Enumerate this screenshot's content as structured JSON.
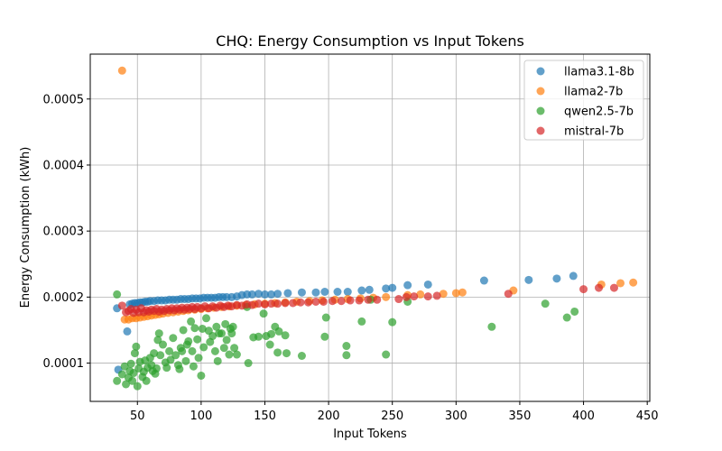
{
  "chart_data": {
    "type": "scatter",
    "title": "CHQ: Energy Consumption vs Input Tokens",
    "xlabel": "Input Tokens",
    "ylabel": "Energy Consumption (kWh)",
    "xlim": [
      13,
      452
    ],
    "ylim": [
      4.2e-05,
      0.000568
    ],
    "xticks": [
      50,
      100,
      150,
      200,
      250,
      300,
      350,
      400,
      450
    ],
    "yticks": [
      0.0001,
      0.0002,
      0.0003,
      0.0004,
      0.0005
    ],
    "ytick_labels": [
      "0.0001",
      "0.0002",
      "0.0003",
      "0.0004",
      "0.0005"
    ],
    "grid": true,
    "legend_position": "top-right",
    "series": [
      {
        "name": "llama3.1-8b",
        "color": "#1f77b4",
        "points": [
          [
            34,
            0.000183
          ],
          [
            35,
            9e-05
          ],
          [
            42,
            0.000148
          ],
          [
            44,
            0.000189
          ],
          [
            46,
            0.00019
          ],
          [
            48,
            0.000191
          ],
          [
            50,
            0.000191
          ],
          [
            52,
            0.000192
          ],
          [
            54,
            0.000192
          ],
          [
            56,
            0.000193
          ],
          [
            58,
            0.000193
          ],
          [
            60,
            0.000194
          ],
          [
            63,
            0.000194
          ],
          [
            66,
            0.000195
          ],
          [
            69,
            0.000195
          ],
          [
            72,
            0.000195
          ],
          [
            75,
            0.000196
          ],
          [
            78,
            0.000196
          ],
          [
            81,
            0.000196
          ],
          [
            84,
            0.000197
          ],
          [
            87,
            0.000197
          ],
          [
            90,
            0.000197
          ],
          [
            93,
            0.000198
          ],
          [
            96,
            0.000198
          ],
          [
            99,
            0.000198
          ],
          [
            102,
            0.000199
          ],
          [
            105,
            0.000199
          ],
          [
            108,
            0.000199
          ],
          [
            111,
            0.000199
          ],
          [
            114,
            0.0002
          ],
          [
            117,
            0.0002
          ],
          [
            120,
            0.0002
          ],
          [
            124,
            0.0002
          ],
          [
            128,
            0.000201
          ],
          [
            132,
            0.000203
          ],
          [
            136,
            0.000204
          ],
          [
            140,
            0.000204
          ],
          [
            145,
            0.000205
          ],
          [
            150,
            0.000204
          ],
          [
            155,
            0.000204
          ],
          [
            160,
            0.000205
          ],
          [
            168,
            0.000206
          ],
          [
            179,
            0.000207
          ],
          [
            190,
            0.000207
          ],
          [
            197,
            0.000208
          ],
          [
            207,
            0.000208
          ],
          [
            215,
            0.000208
          ],
          [
            226,
            0.00021
          ],
          [
            232,
            0.000211
          ],
          [
            245,
            0.000213
          ],
          [
            250,
            0.000214
          ],
          [
            262,
            0.000218
          ],
          [
            278,
            0.000219
          ],
          [
            322,
            0.000225
          ],
          [
            357,
            0.000226
          ],
          [
            379,
            0.000228
          ],
          [
            392,
            0.000232
          ]
        ]
      },
      {
        "name": "llama2-7b",
        "color": "#ff7f0e",
        "points": [
          [
            38,
            0.000543
          ],
          [
            40,
            0.000166
          ],
          [
            43,
            0.000166
          ],
          [
            46,
            0.000168
          ],
          [
            49,
            0.000168
          ],
          [
            52,
            0.000169
          ],
          [
            55,
            0.00017
          ],
          [
            58,
            0.000171
          ],
          [
            61,
            0.000172
          ],
          [
            64,
            0.000173
          ],
          [
            67,
            0.000174
          ],
          [
            70,
            0.000175
          ],
          [
            74,
            0.000176
          ],
          [
            78,
            0.000177
          ],
          [
            82,
            0.000178
          ],
          [
            86,
            0.000179
          ],
          [
            90,
            0.00018
          ],
          [
            95,
            0.000181
          ],
          [
            100,
            0.000182
          ],
          [
            105,
            0.000183
          ],
          [
            110,
            0.000184
          ],
          [
            116,
            0.000185
          ],
          [
            122,
            0.000186
          ],
          [
            128,
            0.000187
          ],
          [
            135,
            0.000188
          ],
          [
            142,
            0.000189
          ],
          [
            150,
            0.00019
          ],
          [
            158,
            0.000191
          ],
          [
            166,
            0.000192
          ],
          [
            175,
            0.000193
          ],
          [
            185,
            0.000194
          ],
          [
            195,
            0.000195
          ],
          [
            205,
            0.000196
          ],
          [
            215,
            0.000197
          ],
          [
            225,
            0.000198
          ],
          [
            235,
            0.000199
          ],
          [
            245,
            0.0002
          ],
          [
            262,
            0.000203
          ],
          [
            272,
            0.000204
          ],
          [
            290,
            0.000205
          ],
          [
            300,
            0.000206
          ],
          [
            305,
            0.000207
          ],
          [
            345,
            0.00021
          ],
          [
            414,
            0.000219
          ],
          [
            429,
            0.000221
          ],
          [
            439,
            0.000222
          ]
        ]
      },
      {
        "name": "qwen2.5-7b",
        "color": "#2ca02c",
        "points": [
          [
            34,
            0.000204
          ],
          [
            34,
            7.3e-05
          ],
          [
            38,
            8.3e-05
          ],
          [
            40,
            9.5e-05
          ],
          [
            41,
            6.8e-05
          ],
          [
            43,
            7.8e-05
          ],
          [
            44,
            8.8e-05
          ],
          [
            45,
            9.9e-05
          ],
          [
            46,
            7.3e-05
          ],
          [
            47,
            8.5e-05
          ],
          [
            48,
            0.000115
          ],
          [
            49,
            0.000125
          ],
          [
            50,
            6.5e-05
          ],
          [
            51,
            9.2e-05
          ],
          [
            52,
            0.000102
          ],
          [
            54,
            7.9e-05
          ],
          [
            55,
            8.7e-05
          ],
          [
            56,
            0.000104
          ],
          [
            57,
            7.3e-05
          ],
          [
            58,
            9.3e-05
          ],
          [
            60,
            0.000108
          ],
          [
            61,
            9.7e-05
          ],
          [
            62,
            8.8e-05
          ],
          [
            63,
            0.000115
          ],
          [
            64,
            8.4e-05
          ],
          [
            65,
            9.2e-05
          ],
          [
            66,
            0.000135
          ],
          [
            67,
            0.000145
          ],
          [
            68,
            0.000112
          ],
          [
            70,
            0.000128
          ],
          [
            72,
            0.000101
          ],
          [
            73,
            9.3e-05
          ],
          [
            75,
            0.000118
          ],
          [
            76,
            0.000105
          ],
          [
            78,
            0.000138
          ],
          [
            80,
            0.000112
          ],
          [
            82,
            9.7e-05
          ],
          [
            83,
            9.1e-05
          ],
          [
            84,
            0.000123
          ],
          [
            85,
            0.000118
          ],
          [
            86,
            0.00015
          ],
          [
            88,
            0.000103
          ],
          [
            89,
            0.000128
          ],
          [
            90,
            0.000133
          ],
          [
            92,
            0.000163
          ],
          [
            93,
            0.000118
          ],
          [
            94,
            9.5e-05
          ],
          [
            95,
            0.000153
          ],
          [
            97,
            0.000136
          ],
          [
            98,
            0.000108
          ],
          [
            100,
            8.1e-05
          ],
          [
            101,
            0.000152
          ],
          [
            102,
            0.000124
          ],
          [
            104,
            0.000168
          ],
          [
            106,
            0.000149
          ],
          [
            107,
            0.000132
          ],
          [
            109,
            0.000141
          ],
          [
            111,
            0.000118
          ],
          [
            112,
            0.000155
          ],
          [
            113,
            0.000103
          ],
          [
            114,
            0.000145
          ],
          [
            116,
            0.000145
          ],
          [
            118,
            0.000123
          ],
          [
            119,
            0.000159
          ],
          [
            120,
            0.000135
          ],
          [
            122,
            0.000113
          ],
          [
            123,
            0.000152
          ],
          [
            124,
            0.000145
          ],
          [
            125,
            0.000155
          ],
          [
            126,
            0.000123
          ],
          [
            128,
            0.000113
          ],
          [
            136,
            0.000185
          ],
          [
            137,
            0.0001
          ],
          [
            141,
            0.000139
          ],
          [
            145,
            0.00014
          ],
          [
            149,
            0.000175
          ],
          [
            151,
            0.000141
          ],
          [
            154,
            0.000128
          ],
          [
            155,
            0.000144
          ],
          [
            158,
            0.000155
          ],
          [
            160,
            0.000116
          ],
          [
            161,
            0.000148
          ],
          [
            166,
            0.000142
          ],
          [
            167,
            0.000115
          ],
          [
            179,
            0.000111
          ],
          [
            197,
            0.00014
          ],
          [
            198,
            0.000169
          ],
          [
            214,
            0.000112
          ],
          [
            214,
            0.000126
          ],
          [
            226,
            0.000163
          ],
          [
            233,
            0.000196
          ],
          [
            245,
            0.000113
          ],
          [
            250,
            0.000162
          ],
          [
            262,
            0.000193
          ],
          [
            328,
            0.000155
          ],
          [
            370,
            0.00019
          ],
          [
            387,
            0.000169
          ],
          [
            393,
            0.000178
          ]
        ]
      },
      {
        "name": "mistral-7b",
        "color": "#d62728",
        "points": [
          [
            38,
            0.000187
          ],
          [
            41,
            0.000177
          ],
          [
            43,
            0.000179
          ],
          [
            45,
            0.000182
          ],
          [
            47,
            0.000176
          ],
          [
            49,
            0.000181
          ],
          [
            51,
            0.000177
          ],
          [
            53,
            0.000183
          ],
          [
            55,
            0.000177
          ],
          [
            57,
            0.00018
          ],
          [
            59,
            0.000178
          ],
          [
            61,
            0.000181
          ],
          [
            63,
            0.000179
          ],
          [
            65,
            0.000182
          ],
          [
            67,
            0.000178
          ],
          [
            69,
            0.000181
          ],
          [
            71,
            0.000179
          ],
          [
            73,
            0.000182
          ],
          [
            75,
            0.00018
          ],
          [
            77,
            0.000183
          ],
          [
            79,
            0.00018
          ],
          [
            81,
            0.000183
          ],
          [
            83,
            0.000181
          ],
          [
            85,
            0.000184
          ],
          [
            87,
            0.000181
          ],
          [
            89,
            0.000184
          ],
          [
            91,
            0.000182
          ],
          [
            93,
            0.000185
          ],
          [
            95,
            0.000182
          ],
          [
            97,
            0.000185
          ],
          [
            100,
            0.000183
          ],
          [
            103,
            0.000186
          ],
          [
            106,
            0.000183
          ],
          [
            109,
            0.000186
          ],
          [
            112,
            0.000184
          ],
          [
            115,
            0.000187
          ],
          [
            118,
            0.000185
          ],
          [
            121,
            0.000187
          ],
          [
            124,
            0.000186
          ],
          [
            128,
            0.000188
          ],
          [
            132,
            0.000187
          ],
          [
            136,
            0.000189
          ],
          [
            140,
            0.000188
          ],
          [
            145,
            0.00019
          ],
          [
            150,
            0.000189
          ],
          [
            155,
            0.00019
          ],
          [
            160,
            0.00019
          ],
          [
            166,
            0.000191
          ],
          [
            172,
            0.000191
          ],
          [
            178,
            0.000192
          ],
          [
            184,
            0.000192
          ],
          [
            190,
            0.000193
          ],
          [
            196,
            0.000193
          ],
          [
            203,
            0.000194
          ],
          [
            210,
            0.000194
          ],
          [
            217,
            0.000195
          ],
          [
            224,
            0.000195
          ],
          [
            231,
            0.000196
          ],
          [
            238,
            0.000196
          ],
          [
            255,
            0.000197
          ],
          [
            261,
            0.0002
          ],
          [
            267,
            0.000201
          ],
          [
            278,
            0.000201
          ],
          [
            285,
            0.000202
          ],
          [
            341,
            0.000205
          ],
          [
            400,
            0.000212
          ],
          [
            412,
            0.000214
          ],
          [
            424,
            0.000214
          ]
        ]
      }
    ]
  }
}
